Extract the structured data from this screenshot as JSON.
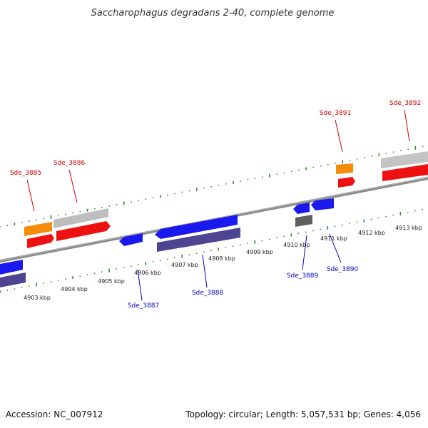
{
  "title": "Saccharophagus degradans 2-40, complete genome",
  "footer": {
    "accession": "Accession: NC_007912",
    "summary": "Topology: circular; Length: 5,057,531 bp; Genes: 4,056"
  },
  "colors": {
    "backbone": "#8a8a8a",
    "forward_cds": "#ee1111",
    "forward_gene": "#bdbdbd",
    "forward_feature": "#f28c0a",
    "reverse_cds": "#1a1aee",
    "reverse_gene": "#4e4590",
    "reverse_pseudo": "#606060",
    "forward_label": "#cc0000",
    "reverse_label": "#0000bb",
    "ticks": "#2e8b2e"
  },
  "ticks": [
    {
      "kbp": 4903,
      "label": "4903 kbp"
    },
    {
      "kbp": 4904,
      "label": "4904 kbp"
    },
    {
      "kbp": 4905,
      "label": "4905 kbp"
    },
    {
      "kbp": 4906,
      "label": "4906 kbp"
    },
    {
      "kbp": 4907,
      "label": "4907 kbp"
    },
    {
      "kbp": 4908,
      "label": "4908 kbp"
    },
    {
      "kbp": 4909,
      "label": "4909 kbp"
    },
    {
      "kbp": 4910,
      "label": "4910 kbp"
    },
    {
      "kbp": 4911,
      "label": "4911 kbp"
    },
    {
      "kbp": 4912,
      "label": "4912 kbp"
    },
    {
      "kbp": 4913,
      "label": "4913 kbp"
    }
  ],
  "genes": {
    "forward": [
      {
        "label": "Sde_3885"
      },
      {
        "label": "Sde_3886"
      },
      {
        "label": "Sde_3891"
      },
      {
        "label": "Sde_3892"
      }
    ],
    "reverse": [
      {
        "label": "Sde_3887"
      },
      {
        "label": "Sde_3888"
      },
      {
        "label": "Sde_3889"
      },
      {
        "label": "Sde_3890"
      }
    ]
  }
}
